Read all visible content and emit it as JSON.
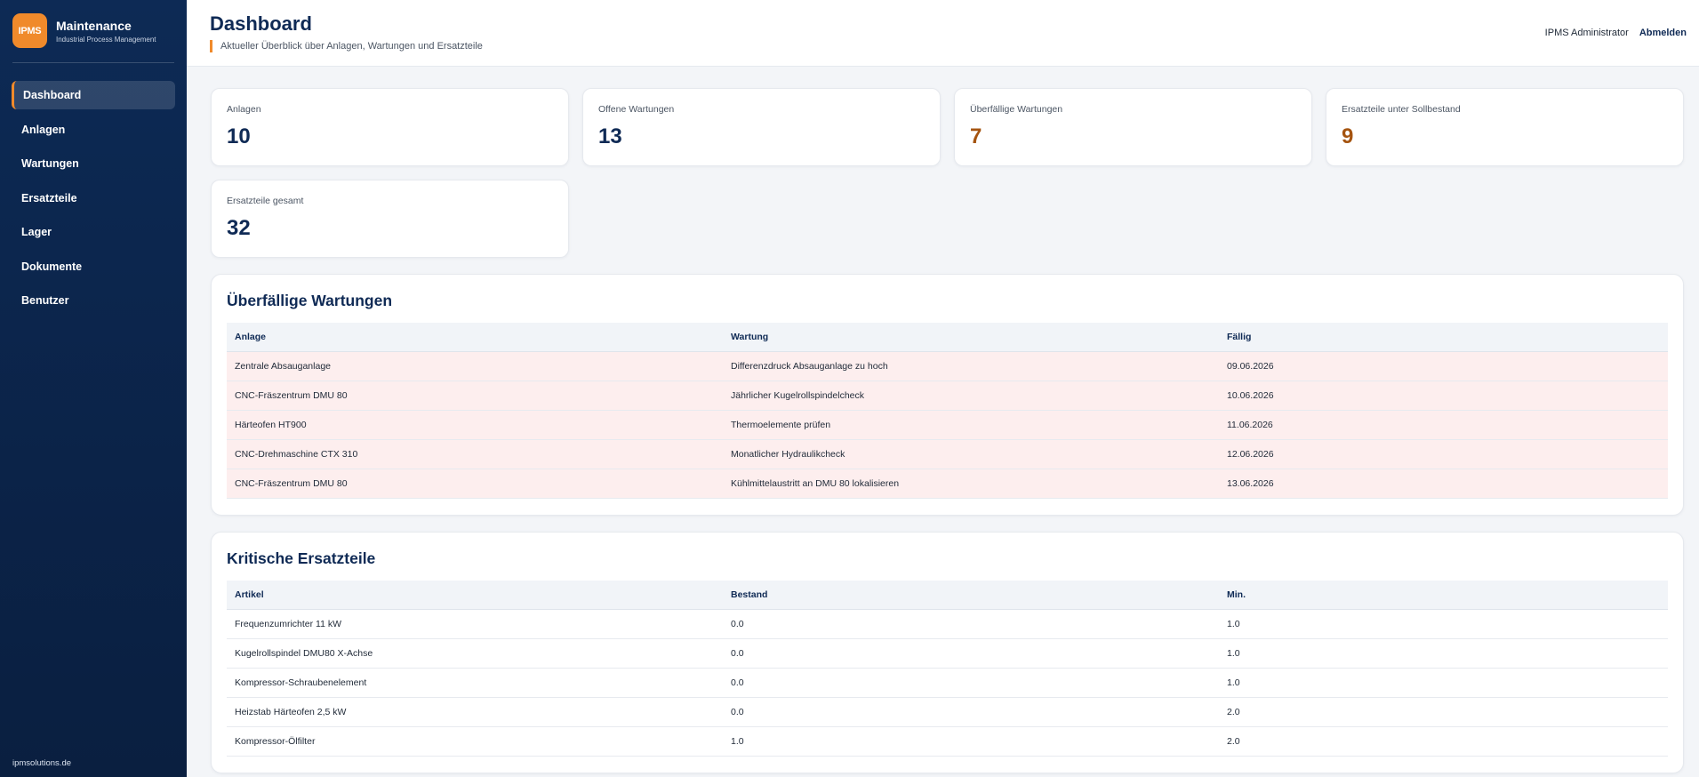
{
  "brand": {
    "logo": "IPMS",
    "title": "Maintenance",
    "subtitle": "Industrial Process Management"
  },
  "nav": [
    {
      "label": "Dashboard",
      "active": true
    },
    {
      "label": "Anlagen"
    },
    {
      "label": "Wartungen"
    },
    {
      "label": "Ersatzteile"
    },
    {
      "label": "Lager"
    },
    {
      "label": "Dokumente"
    },
    {
      "label": "Benutzer"
    }
  ],
  "footer": "ipmsolutions.de",
  "header": {
    "title": "Dashboard",
    "subtitle": "Aktueller Überblick über Anlagen, Wartungen und Ersatzteile",
    "user": "IPMS Administrator",
    "logout": "Abmelden"
  },
  "stats": [
    {
      "label": "Anlagen",
      "value": "10"
    },
    {
      "label": "Offene Wartungen",
      "value": "13"
    },
    {
      "label": "Überfällige Wartungen",
      "value": "7"
    },
    {
      "label": "Ersatzteile unter Sollbestand",
      "value": "9"
    },
    {
      "label": "Ersatzteile gesamt",
      "value": "32"
    }
  ],
  "colors": {
    "accent": "#f08a2b",
    "navy": "#0f2a55",
    "warning": "#a55410",
    "overdue_row": "#fdeeee"
  },
  "overdue": {
    "title": "Überfällige Wartungen",
    "columns": [
      "Anlage",
      "Wartung",
      "Fällig"
    ],
    "rows": [
      [
        "Zentrale Absauganlage",
        "Differenzdruck Absauganlage zu hoch",
        "09.06.2026"
      ],
      [
        "CNC-Fräszentrum DMU 80",
        "Jährlicher Kugelrollspindelcheck",
        "10.06.2026"
      ],
      [
        "Härteofen HT900",
        "Thermoelemente prüfen",
        "11.06.2026"
      ],
      [
        "CNC-Drehmaschine CTX 310",
        "Monatlicher Hydraulikcheck",
        "12.06.2026"
      ],
      [
        "CNC-Fräszentrum DMU 80",
        "Kühlmittelaustritt an DMU 80 lokalisieren",
        "13.06.2026"
      ]
    ]
  },
  "critical": {
    "title": "Kritische Ersatzteile",
    "columns": [
      "Artikel",
      "Bestand",
      "Min."
    ],
    "rows": [
      [
        "Frequenzumrichter 11 kW",
        "0.0",
        "1.0"
      ],
      [
        "Kugelrollspindel DMU80 X-Achse",
        "0.0",
        "1.0"
      ],
      [
        "Kompressor-Schraubenelement",
        "0.0",
        "1.0"
      ],
      [
        "Heizstab Härteofen 2,5 kW",
        "0.0",
        "2.0"
      ],
      [
        "Kompressor-Ölfilter",
        "1.0",
        "2.0"
      ]
    ]
  }
}
